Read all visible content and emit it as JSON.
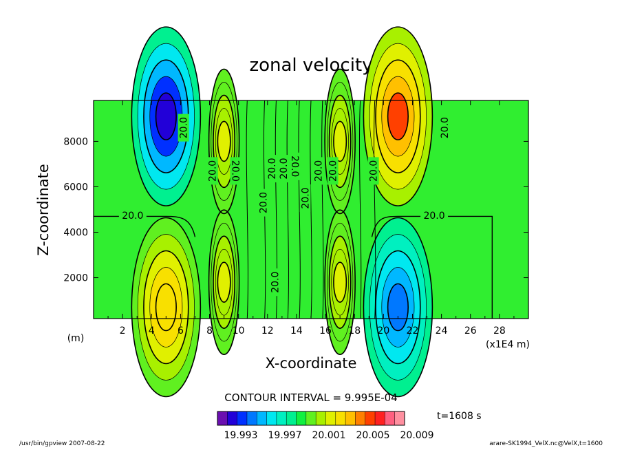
{
  "chart_data": {
    "type": "heatmap",
    "title": "zonal velocity",
    "xlabel": "X-coordinate",
    "ylabel": "Z-coordinate",
    "x_unit": "(m)",
    "x_scale_note": "(x1E4 m)",
    "xlim": [
      0,
      30
    ],
    "ylim": [
      200,
      9800
    ],
    "x_ticks": [
      "2",
      "4",
      "6",
      "8",
      "10",
      "12",
      "14",
      "16",
      "18",
      "20",
      "22",
      "24",
      "26",
      "28"
    ],
    "y_ticks": [
      "2000",
      "4000",
      "6000",
      "8000"
    ],
    "contour_interval": "CONTOUR INTERVAL = 9.995E-04",
    "contour_label": "20.0",
    "time_label": "t=1608 s",
    "colorbar_ticks": [
      "19.993",
      "19.997",
      "20.001",
      "20.005",
      "20.009"
    ],
    "colorbar_colors": [
      "#6a0fb0",
      "#2200d8",
      "#0030ff",
      "#0078ff",
      "#00b8ff",
      "#00e8f0",
      "#00f0c0",
      "#00f090",
      "#10f040",
      "#60f020",
      "#a8f000",
      "#e0f000",
      "#f8e000",
      "#ffc000",
      "#ff8000",
      "#ff4000",
      "#ff2020",
      "#ff6080",
      "#ff90a0"
    ],
    "blobs": [
      {
        "x": 5.0,
        "z": 9100,
        "value": 19.9935
      },
      {
        "x": 5.0,
        "z": 700,
        "value": 20.004
      },
      {
        "x": 21.0,
        "z": 9100,
        "value": 20.006
      },
      {
        "x": 21.0,
        "z": 700,
        "value": 19.996
      },
      {
        "x": 9.0,
        "z": 8000,
        "value": 20.0025
      },
      {
        "x": 9.0,
        "z": 1800,
        "value": 20.0025
      },
      {
        "x": 17.0,
        "z": 8000,
        "value": 20.0025
      },
      {
        "x": 17.0,
        "z": 1800,
        "value": 20.0025
      }
    ]
  },
  "footer": {
    "left": "/usr/bin/gpview   2007-08-22",
    "right": "arare-SK1994_VelX.nc@VelX,t=1600"
  }
}
